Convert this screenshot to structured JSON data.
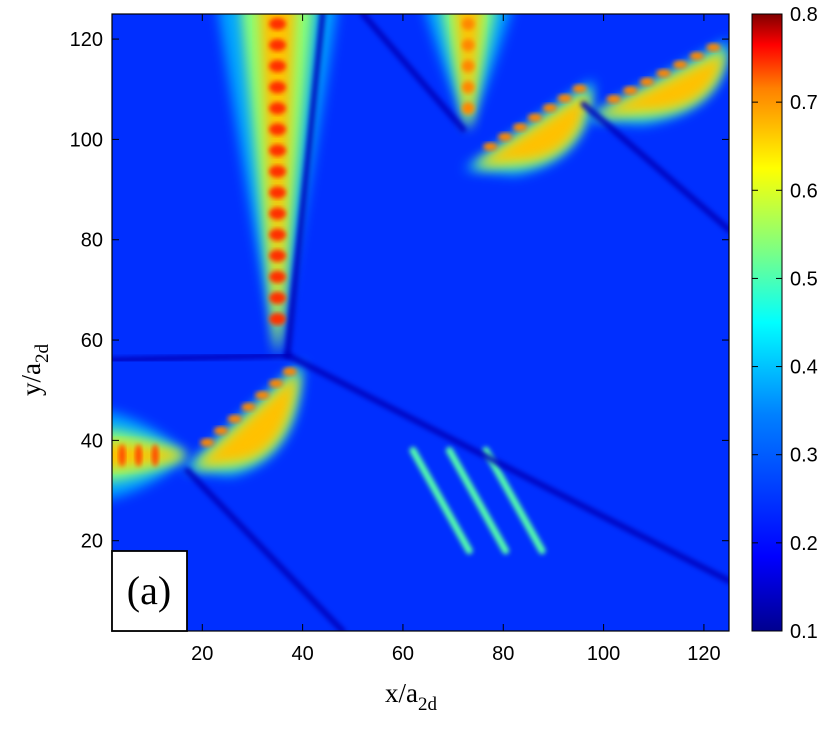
{
  "chart_data": {
    "type": "heatmap",
    "title": "",
    "panel_label": "(a)",
    "xlabel": {
      "main": "x/a",
      "sub": "2d"
    },
    "ylabel": {
      "main": "y/a",
      "sub": "2d"
    },
    "xlim": [
      2,
      125
    ],
    "ylim": [
      2,
      125
    ],
    "xticks": [
      20,
      40,
      60,
      80,
      100,
      120
    ],
    "yticks": [
      20,
      40,
      60,
      80,
      100,
      120
    ],
    "colorbar": {
      "range": [
        0.1,
        0.8
      ],
      "ticks": [
        0.1,
        0.2,
        0.3,
        0.4,
        0.5,
        0.6,
        0.7,
        0.8
      ],
      "colormap": "jet"
    },
    "background_value": 0.22,
    "features": [
      {
        "kind": "lobe",
        "x": [
          23,
          47
        ],
        "y_top": 125,
        "y_apex": 57,
        "peak": 0.68
      },
      {
        "kind": "wedge",
        "x": [
          16,
          40
        ],
        "y_top": 56,
        "y_bottom": 34,
        "peak": 0.62
      },
      {
        "kind": "lobe-left",
        "x": [
          2,
          17
        ],
        "y": [
          28,
          46
        ],
        "peak": 0.66
      },
      {
        "kind": "lobe",
        "x": [
          64,
          82
        ],
        "y_top": 125,
        "y_apex": 102,
        "peak": 0.62
      },
      {
        "kind": "wedge",
        "x": [
          72,
          98
        ],
        "y_top": 112,
        "y_bottom": 94,
        "peak": 0.62
      },
      {
        "kind": "wedge",
        "x": [
          96,
          125
        ],
        "y_top": 120,
        "y_bottom": 104,
        "peak": 0.62
      },
      {
        "kind": "streaks",
        "x": [
          62,
          95
        ],
        "y": [
          18,
          38
        ],
        "peak": 0.42
      }
    ]
  }
}
